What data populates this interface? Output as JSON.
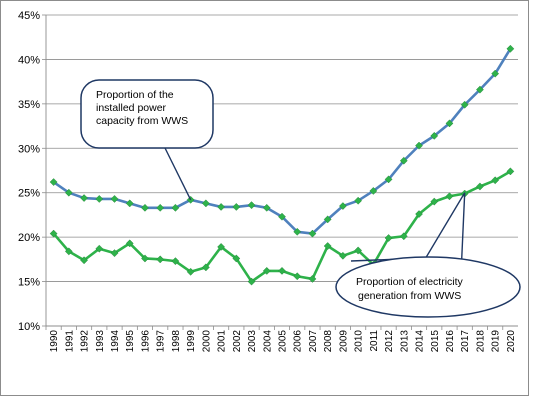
{
  "chart_data": {
    "type": "line",
    "x": [
      "1990",
      "1991",
      "1992",
      "1993",
      "1994",
      "1995",
      "1996",
      "1997",
      "1998",
      "1999",
      "2000",
      "2001",
      "2002",
      "2003",
      "2004",
      "2005",
      "2006",
      "2007",
      "2008",
      "2009",
      "2010",
      "2011",
      "2012",
      "2013",
      "2014",
      "2015",
      "2016",
      "2017",
      "2018",
      "2019",
      "2020"
    ],
    "series": [
      {
        "name": "Proportion of the installed power capacity from WWS",
        "color": "#4f81bd",
        "marker_color": "#2eb24a",
        "values": [
          26.2,
          25.0,
          24.4,
          24.3,
          24.3,
          23.8,
          23.3,
          23.3,
          23.3,
          24.2,
          23.8,
          23.4,
          23.4,
          23.6,
          23.3,
          22.3,
          20.6,
          20.4,
          22.0,
          23.5,
          24.1,
          25.2,
          26.5,
          28.6,
          30.3,
          31.4,
          32.8,
          34.9,
          36.6,
          38.4,
          41.2
        ]
      },
      {
        "name": "Proportion of electricity generation from WWS",
        "color": "#2eb24a",
        "marker_color": "#2eb24a",
        "values": [
          20.4,
          18.4,
          17.4,
          18.7,
          18.2,
          19.3,
          17.6,
          17.5,
          17.3,
          16.1,
          16.6,
          18.9,
          17.6,
          15.0,
          16.2,
          16.2,
          15.6,
          15.3,
          19.0,
          17.9,
          18.5,
          16.9,
          19.9,
          20.1,
          22.6,
          24.0,
          24.6,
          24.9,
          25.7,
          26.4,
          27.4
        ]
      }
    ],
    "yticks": [
      "10%",
      "15%",
      "20%",
      "25%",
      "30%",
      "35%",
      "40%",
      "45%"
    ],
    "ylim": [
      10,
      45
    ],
    "grid": true,
    "annotations": [
      {
        "lines": [
          "Proportion of the",
          "installed power",
          "capacity from WWS"
        ],
        "points_to": {
          "x": "1999",
          "y": 24.2
        }
      },
      {
        "lines": [
          "Proportion of  electricity",
          "generation from WWS"
        ],
        "points_to": {
          "x": "2017",
          "y": 25.0
        }
      }
    ]
  }
}
